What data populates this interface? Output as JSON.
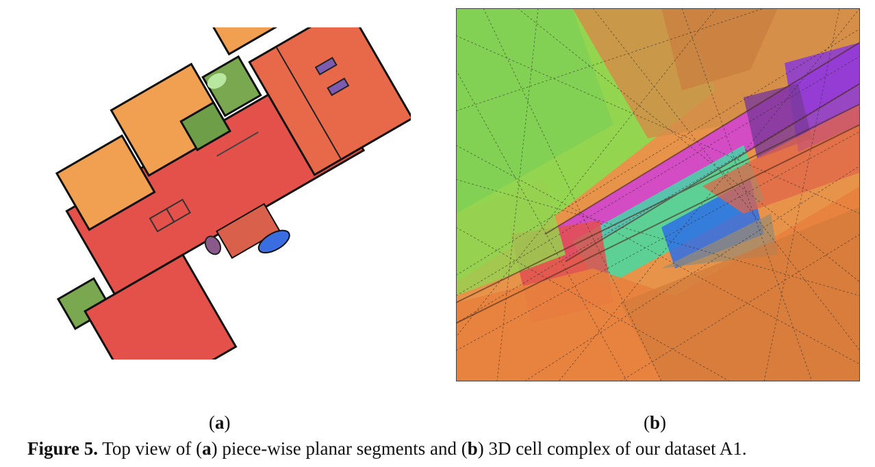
{
  "figure": {
    "subfigures": [
      {
        "label_open": "(",
        "label_letter": "a",
        "label_close": ")"
      },
      {
        "label_open": "(",
        "label_letter": "b",
        "label_close": ")"
      }
    ],
    "caption": {
      "prefix": "Figure 5.",
      "text_1": " Top view of (",
      "ref_a": "a",
      "text_2": ") piece-wise planar segments and (",
      "ref_b": "b",
      "text_3": ") 3D cell complex of our dataset A1."
    }
  }
}
